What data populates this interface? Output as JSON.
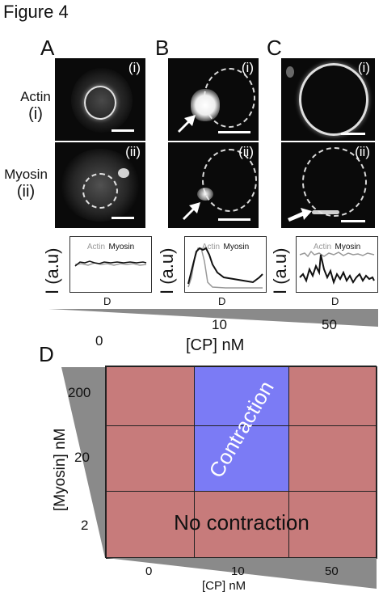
{
  "figure_title": "Figure 4",
  "panels": {
    "A": "A",
    "B": "B",
    "C": "C",
    "D": "D"
  },
  "row_labels": {
    "actin_name": "Actin",
    "actin_num": "(i)",
    "myosin_name": "Myosin",
    "myosin_num": "(ii)"
  },
  "image_tags": {
    "top": "(i)",
    "bottom": "(ii)"
  },
  "profile_plot": {
    "ylabel": "I (a.u)",
    "xlabel": "D",
    "legend_actin": "Actin",
    "legend_myosin": "Myosin"
  },
  "cp_axis": {
    "ticks": [
      "0",
      "10",
      "50"
    ],
    "label": "[CP] nM"
  },
  "phase_diagram": {
    "ylabel": "[Myosin] nM",
    "y_ticks": [
      "200",
      "20",
      "2"
    ],
    "x_ticks": [
      "0",
      "10",
      "50"
    ],
    "xlabel": "[CP] nM",
    "contraction_label": "Contraction",
    "no_contraction_label": "No contraction"
  },
  "colors": {
    "no_contraction": "#c77b7b",
    "contraction": "#7b7bf5",
    "gradient": "#8a8a8a"
  }
}
